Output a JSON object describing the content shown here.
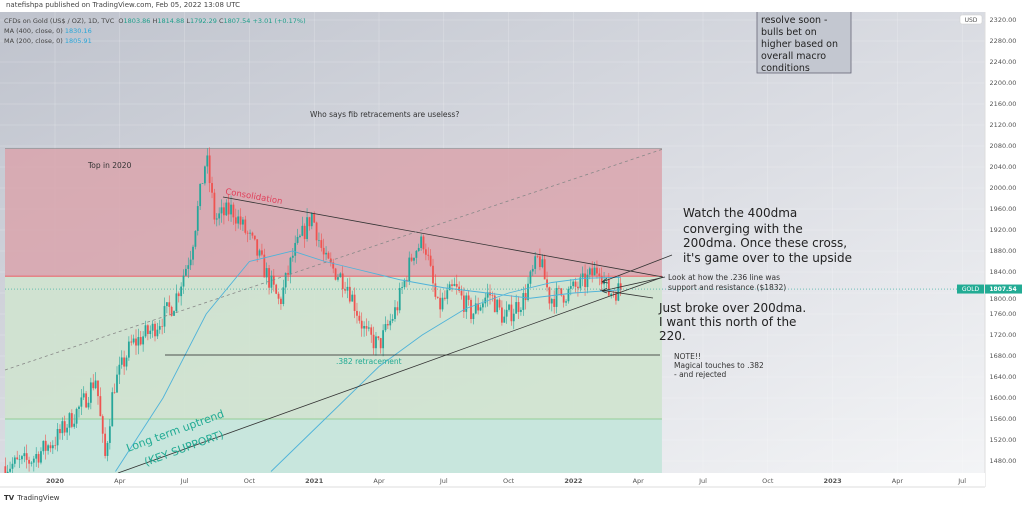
{
  "publisher": "natefishpa published on TradingView.com, Feb 05, 2022 13:08 UTC",
  "legend": {
    "symbol": "CFDs on Gold (US$ / OZ), 1D, TVC",
    "open_label": "O",
    "open": "1803.86",
    "high_label": "H",
    "high": "1814.88",
    "low_label": "L",
    "low": "1792.29",
    "close_label": "C",
    "close": "1807.54",
    "change": "+3.01 (+0.17%)",
    "ma400_label": "MA (400, close, 0)",
    "ma400": "1830.16",
    "ma200_label": "MA (200, close, 0)",
    "ma200": "1805.91"
  },
  "price_tag": {
    "symbol": "GOLD",
    "price": "1807.54"
  },
  "currency": "USD",
  "brand": "TradingView",
  "annotations": {
    "title": "Who says fib retracements are useless?",
    "top": "Top in 2020",
    "consolidation": "Consolidation",
    "fib382": ".382 retracement",
    "box": [
      "resolve soon -",
      "bulls bet on",
      "higher based on",
      "overall macro",
      "conditions"
    ],
    "watch": [
      "Watch the 400dma",
      "converging with the",
      "200dma.  Once these cross,",
      "it's game over to the upside"
    ],
    "look": [
      "Look at how the .236 line was",
      "support and resistance ($1832)"
    ],
    "broke": [
      "Just broke over 200dma.",
      "I want this north of the",
      "220."
    ],
    "note": [
      "NOTE!!",
      "Magical touches to .382",
      "- and rejected"
    ],
    "uptrend": [
      "Long term uptrend",
      "(KEY SUPPORT)"
    ]
  },
  "colors": {
    "up": "#26a69a",
    "down": "#ef5350",
    "ma200": "#4fb3d9",
    "ma400": "#4fb3d9",
    "red_zone": "#d9a5ad",
    "green_zone": "#cfe3cf",
    "teal_zone": "#c8e6dd",
    "fib236": "#f0505a",
    "accent": "#22ab94"
  },
  "chart_data": {
    "type": "candlestick",
    "title": "CFDs on Gold (US$ / OZ), 1D, TVC",
    "ylabel": "USD",
    "ylim": [
      1460,
      2330
    ],
    "y_ticks": [
      2320,
      2280,
      2240,
      2200,
      2160,
      2120,
      2080,
      2040,
      2000,
      1960,
      1920,
      1880,
      1840,
      1800,
      1760,
      1720,
      1680,
      1640,
      1600,
      1560,
      1520,
      1480
    ],
    "x_unit": "months since Jan 2020",
    "x_ticks": [
      {
        "label": "2020",
        "m": 0
      },
      {
        "label": "Apr",
        "m": 3
      },
      {
        "label": "Jul",
        "m": 6
      },
      {
        "label": "Oct",
        "m": 9
      },
      {
        "label": "2021",
        "m": 12
      },
      {
        "label": "Apr",
        "m": 15
      },
      {
        "label": "Jul",
        "m": 18
      },
      {
        "label": "Oct",
        "m": 21
      },
      {
        "label": "2022",
        "m": 24
      },
      {
        "label": "Apr",
        "m": 27
      },
      {
        "label": "Jul",
        "m": 30
      },
      {
        "label": "Oct",
        "m": 33
      },
      {
        "label": "2023",
        "m": 36
      },
      {
        "label": "Apr",
        "m": 39
      },
      {
        "label": "Jul",
        "m": 42
      }
    ],
    "price_path": [
      [
        -2.3,
        1470
      ],
      [
        -1.2,
        1480
      ],
      [
        0,
        1520
      ],
      [
        1.3,
        1590
      ],
      [
        1.9,
        1640
      ],
      [
        2.3,
        1480
      ],
      [
        2.7,
        1620
      ],
      [
        3.5,
        1700
      ],
      [
        4.5,
        1730
      ],
      [
        5.5,
        1780
      ],
      [
        6.3,
        1880
      ],
      [
        7.0,
        2060
      ],
      [
        7.4,
        1940
      ],
      [
        8.2,
        1960
      ],
      [
        9.2,
        1890
      ],
      [
        10.4,
        1780
      ],
      [
        11.0,
        1870
      ],
      [
        11.9,
        1950
      ],
      [
        12.5,
        1860
      ],
      [
        13.5,
        1820
      ],
      [
        14.4,
        1720
      ],
      [
        15.0,
        1700
      ],
      [
        15.8,
        1770
      ],
      [
        16.6,
        1880
      ],
      [
        17.1,
        1900
      ],
      [
        17.7,
        1770
      ],
      [
        18.5,
        1810
      ],
      [
        19.3,
        1760
      ],
      [
        20.1,
        1800
      ],
      [
        20.8,
        1750
      ],
      [
        21.7,
        1790
      ],
      [
        22.4,
        1870
      ],
      [
        22.9,
        1790
      ],
      [
        23.7,
        1800
      ],
      [
        24.5,
        1820
      ],
      [
        25.2,
        1850
      ],
      [
        25.6,
        1800
      ],
      [
        26.2,
        1808
      ]
    ],
    "ma200": [
      [
        2.8,
        1460
      ],
      [
        5,
        1600
      ],
      [
        7,
        1760
      ],
      [
        9,
        1860
      ],
      [
        11,
        1880
      ],
      [
        12.5,
        1860
      ],
      [
        14,
        1845
      ],
      [
        16,
        1825
      ],
      [
        18,
        1810
      ],
      [
        20,
        1800
      ],
      [
        22,
        1790
      ],
      [
        24,
        1800
      ],
      [
        26.2,
        1806
      ]
    ],
    "ma400": [
      [
        10,
        1460
      ],
      [
        13,
        1580
      ],
      [
        15,
        1660
      ],
      [
        17,
        1720
      ],
      [
        19,
        1770
      ],
      [
        21,
        1800
      ],
      [
        23,
        1820
      ],
      [
        24.5,
        1828
      ],
      [
        26.2,
        1830
      ]
    ],
    "fib_levels": [
      {
        "level": "0",
        "price": 2075
      },
      {
        "level": ".236",
        "price": 1832
      },
      {
        "level": ".382",
        "price": 1682
      },
      {
        "level": ".5",
        "price": 1560
      }
    ],
    "last_price": 1807.54
  }
}
